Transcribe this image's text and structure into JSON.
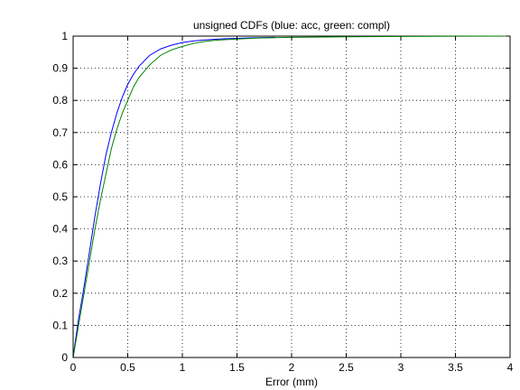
{
  "chart_data": {
    "type": "line",
    "title": "unsigned CDFs (blue: acc, green: compl)",
    "xlabel": "Error (mm)",
    "ylabel": "",
    "xlim": [
      0,
      4
    ],
    "ylim": [
      0,
      1
    ],
    "xticks": [
      "0",
      "0.5",
      "1",
      "1.5",
      "2",
      "2.5",
      "3",
      "3.5",
      "4"
    ],
    "yticks": [
      "0",
      "0.1",
      "0.2",
      "0.3",
      "0.4",
      "0.5",
      "0.6",
      "0.7",
      "0.8",
      "0.9",
      "1"
    ],
    "grid": true,
    "grid_style": "dotted",
    "series": [
      {
        "color": "#0000ff",
        "x": [
          0,
          0.02,
          0.05,
          0.1,
          0.15,
          0.2,
          0.25,
          0.3,
          0.35,
          0.4,
          0.45,
          0.5,
          0.55,
          0.6,
          0.7,
          0.8,
          0.9,
          1.0,
          1.1,
          1.2,
          1.3,
          1.4,
          1.5,
          1.6,
          1.7,
          1.85
        ],
        "y": [
          0.0,
          0.05,
          0.12,
          0.22,
          0.33,
          0.44,
          0.54,
          0.63,
          0.7,
          0.76,
          0.81,
          0.85,
          0.88,
          0.905,
          0.94,
          0.96,
          0.972,
          0.98,
          0.985,
          0.988,
          0.99,
          0.992,
          0.993,
          0.994,
          0.995,
          0.996
        ]
      },
      {
        "color": "#008000",
        "x": [
          0,
          0.02,
          0.05,
          0.1,
          0.15,
          0.2,
          0.25,
          0.3,
          0.35,
          0.4,
          0.45,
          0.5,
          0.55,
          0.6,
          0.7,
          0.8,
          0.9,
          1.0,
          1.1,
          1.2,
          1.3,
          1.5,
          1.7,
          2.0,
          2.5,
          3.0,
          4.0
        ],
        "y": [
          0.0,
          0.04,
          0.1,
          0.2,
          0.3,
          0.4,
          0.49,
          0.57,
          0.65,
          0.71,
          0.76,
          0.8,
          0.84,
          0.87,
          0.91,
          0.94,
          0.957,
          0.968,
          0.977,
          0.983,
          0.987,
          0.991,
          0.994,
          0.996,
          0.998,
          0.999,
          1.0
        ]
      }
    ]
  }
}
